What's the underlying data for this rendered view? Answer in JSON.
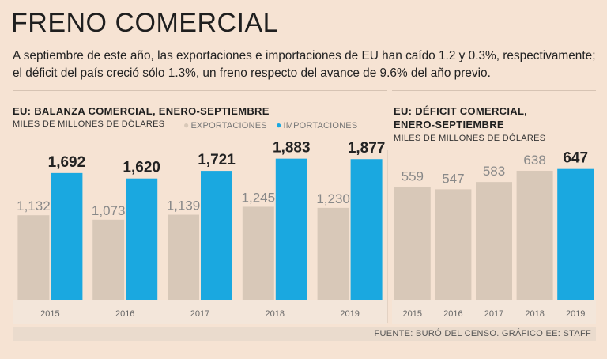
{
  "header": {
    "title": "FRENO COMERCIAL",
    "subtitle": "A septiembre de este año, las exportaciones e importaciones de EU han caído 1.2 y 0.3%, respectivamente; el déficit del país creció sólo 1.3%, un freno respecto del avance de 9.6% del año previo."
  },
  "colors": {
    "exports": "#d8c8b8",
    "imports": "#1aa8e0",
    "deficit": "#d8c8b8",
    "deficit_highlight": "#1aa8e0"
  },
  "left": {
    "title": "EU: BALANZA COMERCIAL, ENERO-SEPTIEMBRE",
    "units": "MILES DE MILLONES DE DÓLARES",
    "legend_exports": "EXPORTACIONES",
    "legend_imports": "IMPORTACIONES"
  },
  "right": {
    "title_line1": "EU: DÉFICIT COMERCIAL,",
    "title_line2": "ENERO-SEPTIEMBRE",
    "units": "MILES DE MILLONES DE DÓLARES"
  },
  "source": "FUENTE: BURÓ DEL CENSO. GRÁFICO EE: STAFF",
  "chart_data": [
    {
      "type": "bar",
      "title": "EU: BALANZA COMERCIAL, ENERO-SEPTIEMBRE",
      "ylabel": "MILES DE MILLONES DE DÓLARES",
      "categories": [
        "2015",
        "2016",
        "2017",
        "2018",
        "2019"
      ],
      "series": [
        {
          "name": "EXPORTACIONES",
          "values": [
            1132,
            1073,
            1139,
            1245,
            1230
          ],
          "labels": [
            "1,132",
            "1,073",
            "1,139",
            "1,245",
            "1,230"
          ]
        },
        {
          "name": "IMPORTACIONES",
          "values": [
            1692,
            1620,
            1721,
            1883,
            1877
          ],
          "labels": [
            "1,692",
            "1,620",
            "1,721",
            "1,883",
            "1,877"
          ]
        }
      ],
      "ylim": [
        0,
        2000
      ]
    },
    {
      "type": "bar",
      "title": "EU: DÉFICIT COMERCIAL, ENERO-SEPTIEMBRE",
      "ylabel": "MILES DE MILLONES DE DÓLARES",
      "categories": [
        "2015",
        "2016",
        "2017",
        "2018",
        "2019"
      ],
      "values": [
        559,
        547,
        583,
        638,
        647
      ],
      "labels": [
        "559",
        "547",
        "583",
        "638",
        "647"
      ],
      "highlight": "2019",
      "ylim": [
        0,
        700
      ]
    }
  ]
}
